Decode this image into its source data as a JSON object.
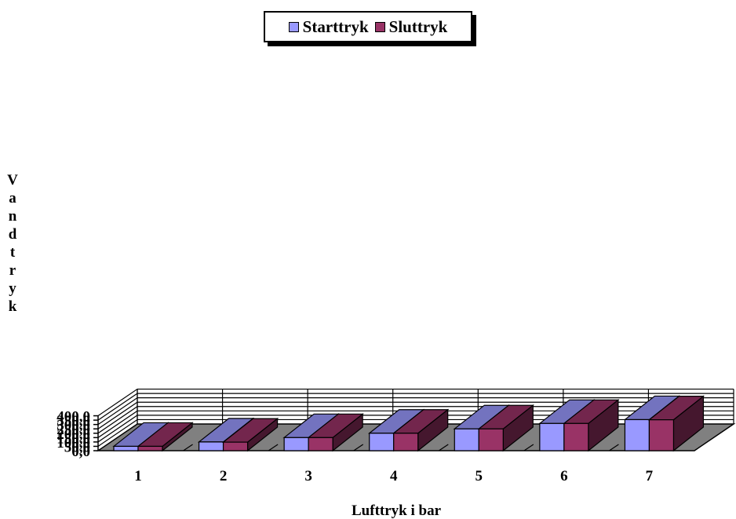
{
  "chart_data": {
    "type": "bar",
    "categories": [
      "1",
      "2",
      "3",
      "4",
      "5",
      "6",
      "7"
    ],
    "series": [
      {
        "name": "Starttryk",
        "values": [
          50,
          100,
          150,
          200,
          250,
          312,
          356
        ]
      },
      {
        "name": "Sluttryk",
        "values": [
          50,
          98,
          150,
          200,
          250,
          312,
          354
        ]
      }
    ],
    "xlabel": "Lufttryk i bar",
    "ylabel": "Vandtryk",
    "ylim": [
      0,
      400
    ],
    "yticks": [
      "0,0",
      "50,0",
      "100,0",
      "150,0",
      "200,0",
      "250,0",
      "300,0",
      "350,0",
      "400,0"
    ],
    "grid": true,
    "legend_position": "top-center",
    "style": "3d-clustered"
  },
  "colors": {
    "series": [
      "#9999ff",
      "#993366"
    ],
    "floor": "#808080",
    "grid": "#000000"
  }
}
